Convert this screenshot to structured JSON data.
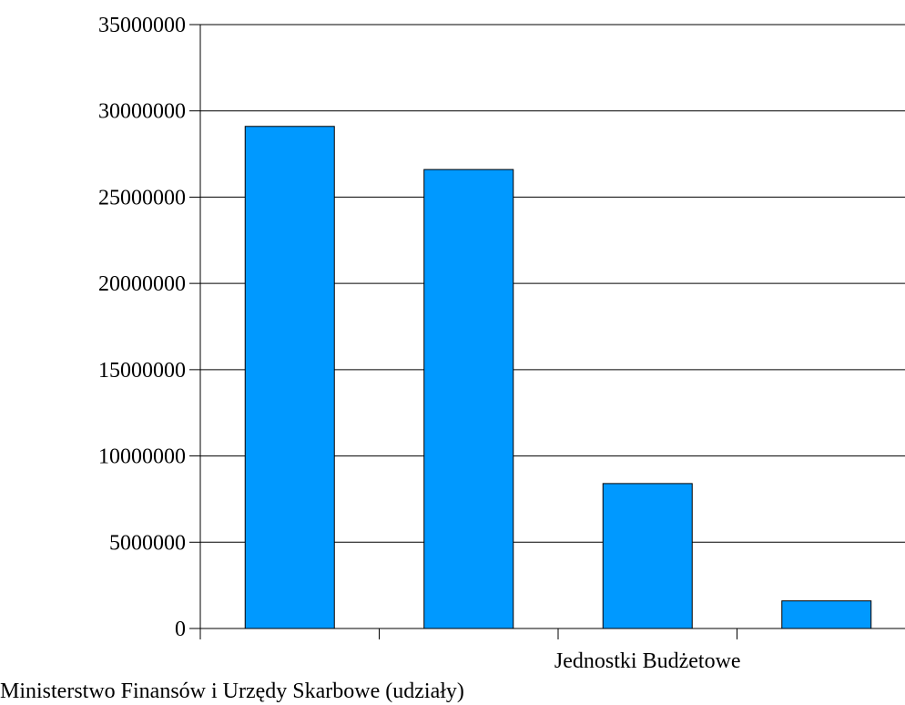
{
  "chart_data": {
    "type": "bar",
    "categories": [
      "",
      "",
      "Jednostki Budżetowe",
      "Ministerstwo Finansów i Urzędy Skarbowe (udziały)"
    ],
    "values": [
      29100000,
      26600000,
      8400000,
      1600000
    ],
    "ylim": [
      0,
      35000000
    ],
    "yticks": [
      "0",
      "5000000",
      "10000000",
      "15000000",
      "20000000",
      "25000000",
      "30000000",
      "35000000"
    ],
    "grid": true,
    "bar_color": "#0099ff",
    "title": "",
    "xlabel": "",
    "ylabel": ""
  }
}
